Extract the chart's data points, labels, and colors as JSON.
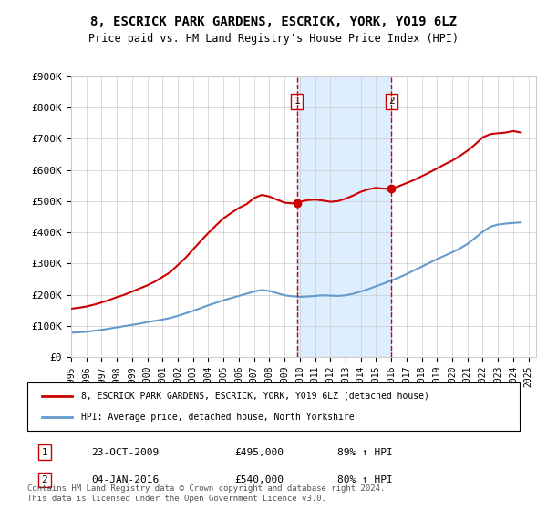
{
  "title": "8, ESCRICK PARK GARDENS, ESCRICK, YORK, YO19 6LZ",
  "subtitle": "Price paid vs. HM Land Registry's House Price Index (HPI)",
  "ylabel": "",
  "xlabel": "",
  "ylim": [
    0,
    900000
  ],
  "yticks": [
    0,
    100000,
    200000,
    300000,
    400000,
    500000,
    600000,
    700000,
    800000,
    900000
  ],
  "ytick_labels": [
    "£0",
    "£100K",
    "£200K",
    "£300K",
    "£400K",
    "£500K",
    "£600K",
    "£700K",
    "£800K",
    "£900K"
  ],
  "xlim_start": 1995.0,
  "xlim_end": 2025.5,
  "xtick_years": [
    1995,
    1996,
    1997,
    1998,
    1999,
    2000,
    2001,
    2002,
    2003,
    2004,
    2005,
    2006,
    2007,
    2008,
    2009,
    2010,
    2011,
    2012,
    2013,
    2014,
    2015,
    2016,
    2017,
    2018,
    2019,
    2020,
    2021,
    2022,
    2023,
    2024,
    2025
  ],
  "red_line_color": "#cc0000",
  "blue_line_color": "#6699cc",
  "shading_color": "#ddeeff",
  "vline_color": "#cc0000",
  "marker1_x": 2009.81,
  "marker1_y": 495000,
  "marker2_x": 2016.01,
  "marker2_y": 540000,
  "marker_color": "#cc0000",
  "legend_line1": "8, ESCRICK PARK GARDENS, ESCRICK, YORK, YO19 6LZ (detached house)",
  "legend_line2": "HPI: Average price, detached house, North Yorkshire",
  "ann1_num": "1",
  "ann1_date": "23-OCT-2009",
  "ann1_price": "£495,000",
  "ann1_hpi": "89% ↑ HPI",
  "ann2_num": "2",
  "ann2_date": "04-JAN-2016",
  "ann2_price": "£540,000",
  "ann2_hpi": "80% ↑ HPI",
  "footer": "Contains HM Land Registry data © Crown copyright and database right 2024.\nThis data is licensed under the Open Government Licence v3.0.",
  "red_x": [
    1995.0,
    1995.5,
    1996.0,
    1996.5,
    1997.0,
    1997.5,
    1998.0,
    1998.5,
    1999.0,
    1999.5,
    2000.0,
    2000.5,
    2001.0,
    2001.5,
    2002.0,
    2002.5,
    2003.0,
    2003.5,
    2004.0,
    2004.5,
    2005.0,
    2005.5,
    2006.0,
    2006.5,
    2007.0,
    2007.5,
    2008.0,
    2008.5,
    2009.0,
    2009.5,
    2009.81,
    2010.0,
    2010.5,
    2011.0,
    2011.5,
    2012.0,
    2012.5,
    2013.0,
    2013.5,
    2014.0,
    2014.5,
    2015.0,
    2015.5,
    2016.01,
    2016.5,
    2017.0,
    2017.5,
    2018.0,
    2018.5,
    2019.0,
    2019.5,
    2020.0,
    2020.5,
    2021.0,
    2021.5,
    2022.0,
    2022.5,
    2023.0,
    2023.5,
    2024.0,
    2024.5
  ],
  "red_y": [
    155000,
    158000,
    162000,
    168000,
    175000,
    183000,
    192000,
    200000,
    210000,
    220000,
    230000,
    242000,
    257000,
    272000,
    295000,
    318000,
    345000,
    372000,
    398000,
    422000,
    445000,
    462000,
    478000,
    490000,
    510000,
    520000,
    515000,
    505000,
    495000,
    493000,
    495000,
    498000,
    503000,
    505000,
    502000,
    498000,
    500000,
    508000,
    518000,
    530000,
    538000,
    543000,
    540000,
    540000,
    548000,
    558000,
    568000,
    580000,
    592000,
    605000,
    618000,
    630000,
    645000,
    662000,
    682000,
    705000,
    715000,
    718000,
    720000,
    725000,
    720000
  ],
  "blue_x": [
    1995.0,
    1995.5,
    1996.0,
    1996.5,
    1997.0,
    1997.5,
    1998.0,
    1998.5,
    1999.0,
    1999.5,
    2000.0,
    2000.5,
    2001.0,
    2001.5,
    2002.0,
    2002.5,
    2003.0,
    2003.5,
    2004.0,
    2004.5,
    2005.0,
    2005.5,
    2006.0,
    2006.5,
    2007.0,
    2007.5,
    2008.0,
    2008.5,
    2009.0,
    2009.5,
    2010.0,
    2010.5,
    2011.0,
    2011.5,
    2012.0,
    2012.5,
    2013.0,
    2013.5,
    2014.0,
    2014.5,
    2015.0,
    2015.5,
    2016.0,
    2016.5,
    2017.0,
    2017.5,
    2018.0,
    2018.5,
    2019.0,
    2019.5,
    2020.0,
    2020.5,
    2021.0,
    2021.5,
    2022.0,
    2022.5,
    2023.0,
    2023.5,
    2024.0,
    2024.5
  ],
  "blue_y": [
    78000,
    79000,
    81000,
    84000,
    87000,
    91000,
    95000,
    99000,
    103000,
    107000,
    112000,
    116000,
    120000,
    125000,
    132000,
    140000,
    148000,
    157000,
    166000,
    174000,
    182000,
    189000,
    196000,
    203000,
    210000,
    215000,
    212000,
    205000,
    198000,
    195000,
    193000,
    194000,
    196000,
    198000,
    197000,
    196000,
    198000,
    203000,
    210000,
    218000,
    227000,
    236000,
    245000,
    255000,
    266000,
    278000,
    290000,
    302000,
    314000,
    325000,
    336000,
    348000,
    363000,
    382000,
    402000,
    418000,
    425000,
    428000,
    430000,
    432000
  ]
}
